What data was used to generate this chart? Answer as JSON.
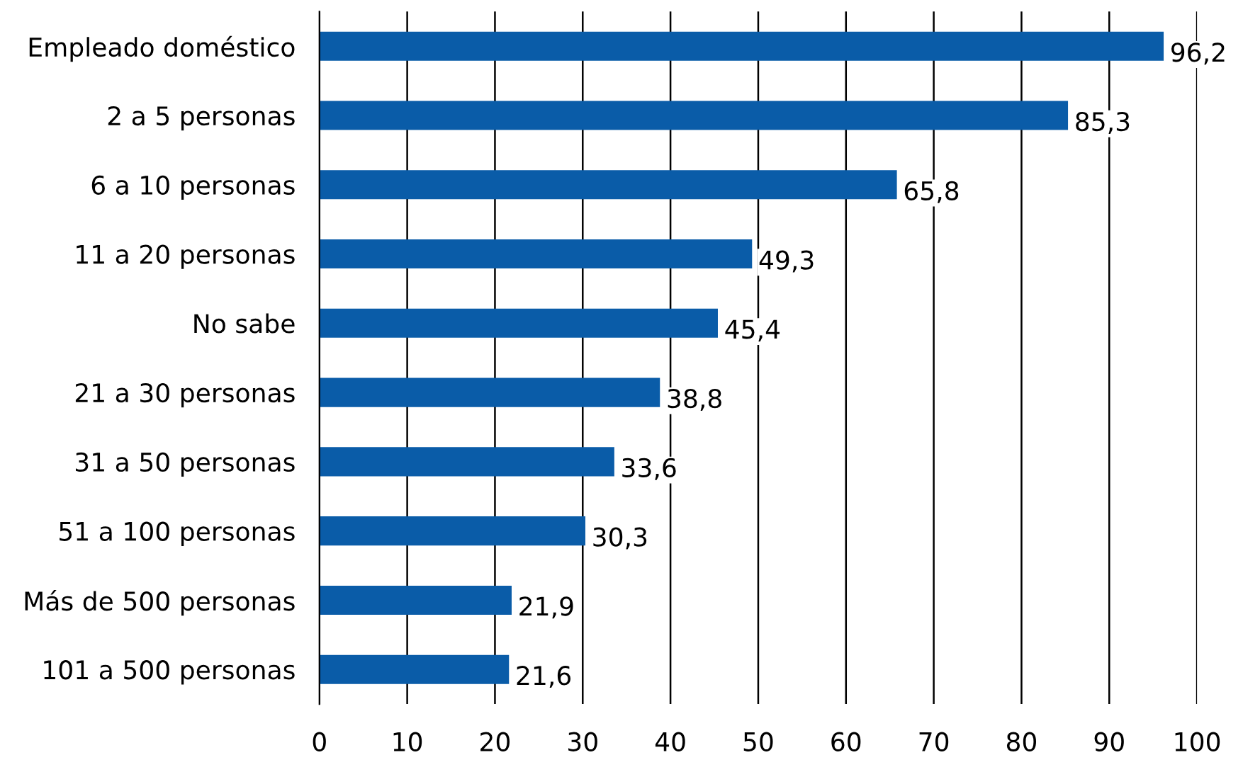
{
  "chart_data": {
    "type": "bar",
    "orientation": "horizontal",
    "categories": [
      "Empleado doméstico",
      "2 a 5 personas",
      "6 a 10 personas",
      "11 a 20 personas",
      "No sabe",
      "21 a 30 personas",
      "31 a 50 personas",
      "51 a 100 personas",
      "Más de 500 personas",
      "101 a 500 personas"
    ],
    "values": [
      96.2,
      85.3,
      65.8,
      49.3,
      45.4,
      38.8,
      33.6,
      30.3,
      21.9,
      21.6
    ],
    "value_labels": [
      "96,2",
      "85,3",
      "65,8",
      "49,3",
      "45,4",
      "38,8",
      "33,6",
      "30,3",
      "21,9",
      "21,6"
    ],
    "color": "#0a5ca8",
    "xlim": [
      0,
      100
    ],
    "xticks": [
      0,
      10,
      20,
      30,
      40,
      50,
      60,
      70,
      80,
      90,
      100
    ],
    "grid": "x"
  }
}
